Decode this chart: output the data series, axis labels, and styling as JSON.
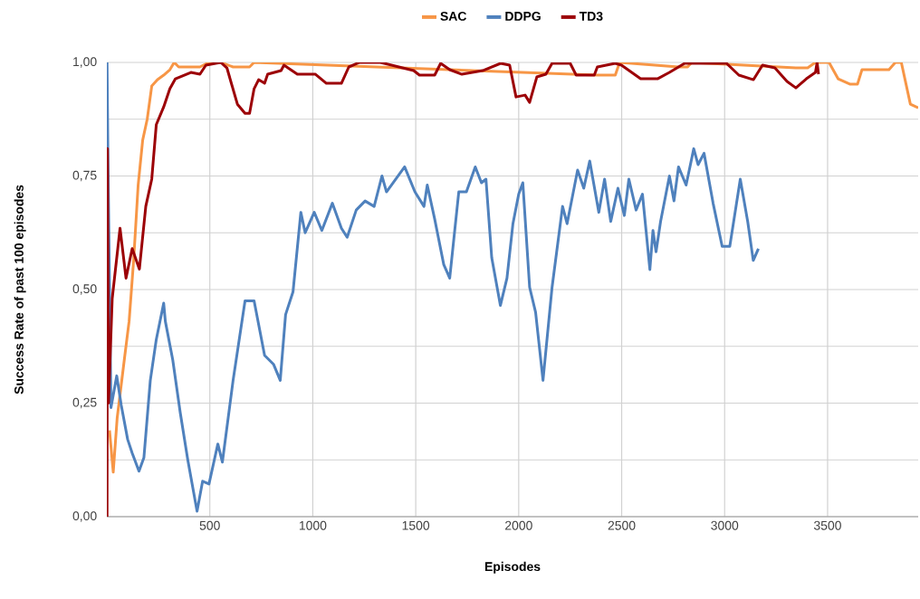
{
  "chart_data": {
    "type": "line",
    "xlabel": "Episodes",
    "ylabel": "Success Rate of past 100 episodes",
    "xlim": [
      0,
      3940
    ],
    "ylim": [
      0,
      1
    ],
    "xticks": [
      500,
      1000,
      1500,
      2000,
      2500,
      3000,
      3500
    ],
    "yticks": [
      {
        "value": 0,
        "label": "0,00"
      },
      {
        "value": 0.125,
        "label": null
      },
      {
        "value": 0.25,
        "label": "0,25"
      },
      {
        "value": 0.375,
        "label": null
      },
      {
        "value": 0.5,
        "label": "0,50"
      },
      {
        "value": 0.625,
        "label": null
      },
      {
        "value": 0.75,
        "label": "0,75"
      },
      {
        "value": 0.875,
        "label": null
      },
      {
        "value": 1,
        "label": "1,00"
      }
    ],
    "grid": true,
    "legend": "top",
    "series": [
      {
        "name": "SAC",
        "color": "#f79646",
        "x": [
          13,
          31,
          50,
          86,
          108,
          130,
          152,
          174,
          196,
          218,
          246,
          276,
          306,
          327,
          349,
          452,
          496,
          553,
          613,
          693,
          715,
          2382,
          2469,
          2490,
          2776,
          2820,
          2840,
          3346,
          3403,
          3441,
          3507,
          3551,
          3610,
          3645,
          3667,
          3798,
          3829,
          3858,
          3902,
          3940
        ],
        "values": [
          0.19,
          0.098,
          0.217,
          0.35,
          0.43,
          0.564,
          0.73,
          0.829,
          0.875,
          0.948,
          0.962,
          0.972,
          0.984,
          1.0,
          0.99,
          0.99,
          1.0,
          1.0,
          0.99,
          0.99,
          1.0,
          0.972,
          0.972,
          1.0,
          0.99,
          0.99,
          1.0,
          0.988,
          0.988,
          1.0,
          1.0,
          0.964,
          0.952,
          0.952,
          0.984,
          0.984,
          1.0,
          1.0,
          0.908,
          0.9
        ]
      },
      {
        "name": "DDPG",
        "color": "#4f81bd",
        "x": [
          1,
          5,
          20,
          48,
          70,
          101,
          123,
          156,
          180,
          211,
          240,
          276,
          284,
          320,
          356,
          393,
          438,
          465,
          496,
          539,
          561,
          613,
          671,
          715,
          766,
          810,
          842,
          868,
          904,
          942,
          963,
          1007,
          1044,
          1095,
          1139,
          1167,
          1211,
          1254,
          1298,
          1336,
          1358,
          1446,
          1496,
          1540,
          1556,
          1592,
          1636,
          1665,
          1680,
          1709,
          1746,
          1789,
          1819,
          1841,
          1869,
          1911,
          1943,
          1972,
          2000,
          2020,
          2053,
          2082,
          2118,
          2162,
          2213,
          2235,
          2286,
          2316,
          2345,
          2389,
          2417,
          2447,
          2482,
          2513,
          2535,
          2570,
          2601,
          2637,
          2652,
          2667,
          2689,
          2732,
          2754,
          2776,
          2813,
          2850,
          2871,
          2900,
          2944,
          2988,
          3025,
          3076,
          3112,
          3139,
          3164
        ],
        "values": [
          1.0,
          0.8,
          0.24,
          0.31,
          0.245,
          0.17,
          0.14,
          0.1,
          0.13,
          0.3,
          0.39,
          0.47,
          0.43,
          0.345,
          0.23,
          0.125,
          0.012,
          0.078,
          0.072,
          0.16,
          0.12,
          0.3,
          0.475,
          0.475,
          0.355,
          0.335,
          0.3,
          0.445,
          0.495,
          0.67,
          0.625,
          0.67,
          0.63,
          0.69,
          0.635,
          0.615,
          0.675,
          0.695,
          0.683,
          0.75,
          0.715,
          0.77,
          0.715,
          0.683,
          0.73,
          0.655,
          0.555,
          0.525,
          0.59,
          0.715,
          0.715,
          0.77,
          0.735,
          0.743,
          0.57,
          0.465,
          0.525,
          0.645,
          0.71,
          0.735,
          0.505,
          0.45,
          0.3,
          0.505,
          0.683,
          0.645,
          0.763,
          0.723,
          0.783,
          0.67,
          0.743,
          0.65,
          0.723,
          0.663,
          0.743,
          0.675,
          0.71,
          0.544,
          0.63,
          0.583,
          0.65,
          0.75,
          0.695,
          0.77,
          0.73,
          0.81,
          0.775,
          0.8,
          0.69,
          0.595,
          0.595,
          0.743,
          0.65,
          0.564,
          0.59
        ]
      },
      {
        "name": "TD3",
        "color": "#9c0006",
        "x": [
          1,
          3,
          8,
          26,
          64,
          93,
          123,
          158,
          189,
          218,
          240,
          276,
          306,
          333,
          408,
          452,
          481,
          553,
          583,
          634,
          671,
          693,
          715,
          737,
          766,
          781,
          846,
          860,
          925,
          1013,
          1066,
          1139,
          1175,
          1227,
          1329,
          1490,
          1518,
          1592,
          1621,
          1665,
          1724,
          1825,
          1912,
          1956,
          1987,
          2031,
          2053,
          2088,
          2132,
          2162,
          2250,
          2279,
          2367,
          2382,
          2469,
          2499,
          2592,
          2674,
          2732,
          2806,
          3009,
          3069,
          3140,
          3184,
          3244,
          3303,
          3346,
          3397,
          3441,
          3449,
          3456
        ],
        "values": [
          0.0,
          0.81,
          0.25,
          0.48,
          0.635,
          0.525,
          0.59,
          0.545,
          0.683,
          0.743,
          0.863,
          0.902,
          0.942,
          0.964,
          0.978,
          0.974,
          0.994,
          1.0,
          0.988,
          0.908,
          0.888,
          0.888,
          0.942,
          0.962,
          0.954,
          0.974,
          0.982,
          0.994,
          0.974,
          0.974,
          0.954,
          0.954,
          0.99,
          1.0,
          1.0,
          0.982,
          0.972,
          0.972,
          0.998,
          0.984,
          0.974,
          0.982,
          0.998,
          0.994,
          0.924,
          0.928,
          0.912,
          0.968,
          0.974,
          0.998,
          0.998,
          0.972,
          0.972,
          0.99,
          0.998,
          0.994,
          0.964,
          0.964,
          0.978,
          0.998,
          0.998,
          0.972,
          0.962,
          0.994,
          0.988,
          0.958,
          0.944,
          0.964,
          0.978,
          1.0,
          0.974
        ]
      }
    ]
  }
}
